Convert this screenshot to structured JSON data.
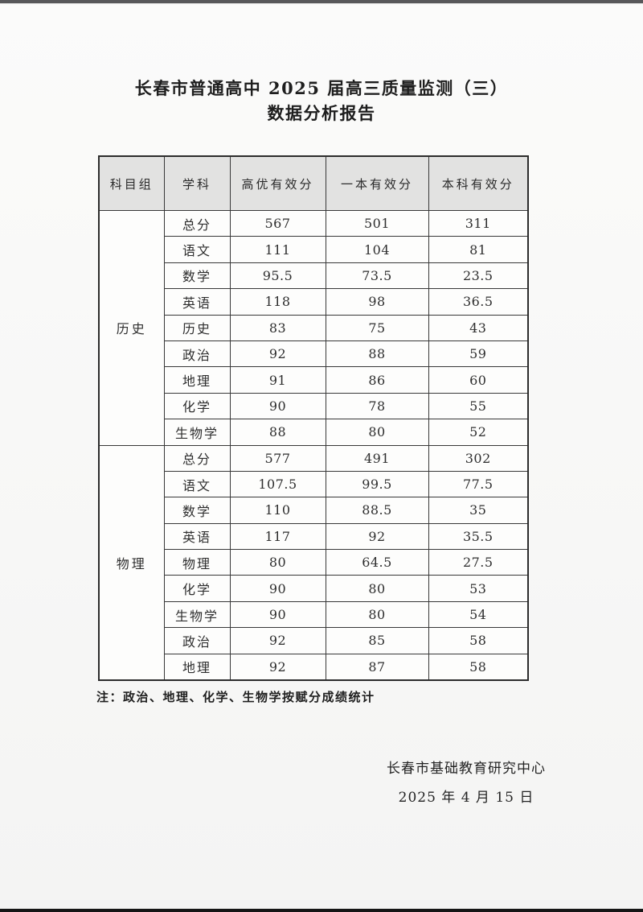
{
  "doc": {
    "title_line1": "长春市普通高中 2025 届高三质量监测（三）",
    "title_line2": "数据分析报告",
    "note": "注：政治、地理、化学、生物学按赋分成绩统计",
    "footer_org": "长春市基础教育研究中心",
    "footer_date": "2025 年 4 月 15 日"
  },
  "table": {
    "headers": [
      "科目组",
      "学科",
      "高优有效分",
      "一本有效分",
      "本科有效分"
    ],
    "groups": [
      {
        "name": "历史",
        "rows": [
          [
            "总分",
            "567",
            "501",
            "311"
          ],
          [
            "语文",
            "111",
            "104",
            "81"
          ],
          [
            "数学",
            "95.5",
            "73.5",
            "23.5"
          ],
          [
            "英语",
            "118",
            "98",
            "36.5"
          ],
          [
            "历史",
            "83",
            "75",
            "43"
          ],
          [
            "政治",
            "92",
            "88",
            "59"
          ],
          [
            "地理",
            "91",
            "86",
            "60"
          ],
          [
            "化学",
            "90",
            "78",
            "55"
          ],
          [
            "生物学",
            "88",
            "80",
            "52"
          ]
        ]
      },
      {
        "name": "物理",
        "rows": [
          [
            "总分",
            "577",
            "491",
            "302"
          ],
          [
            "语文",
            "107.5",
            "99.5",
            "77.5"
          ],
          [
            "数学",
            "110",
            "88.5",
            "35"
          ],
          [
            "英语",
            "117",
            "92",
            "35.5"
          ],
          [
            "物理",
            "80",
            "64.5",
            "27.5"
          ],
          [
            "化学",
            "90",
            "80",
            "53"
          ],
          [
            "生物学",
            "90",
            "80",
            "54"
          ],
          [
            "政治",
            "92",
            "85",
            "58"
          ],
          [
            "地理",
            "92",
            "87",
            "58"
          ]
        ]
      }
    ]
  },
  "colors": {
    "page_bg": "#f8f8f7",
    "header_bg": "#e2e2e1",
    "border": "#383838",
    "outer_border": "#2c2c2c",
    "top_bar": "#58585a",
    "bottom_bar": "#151515",
    "text": "#222222"
  }
}
